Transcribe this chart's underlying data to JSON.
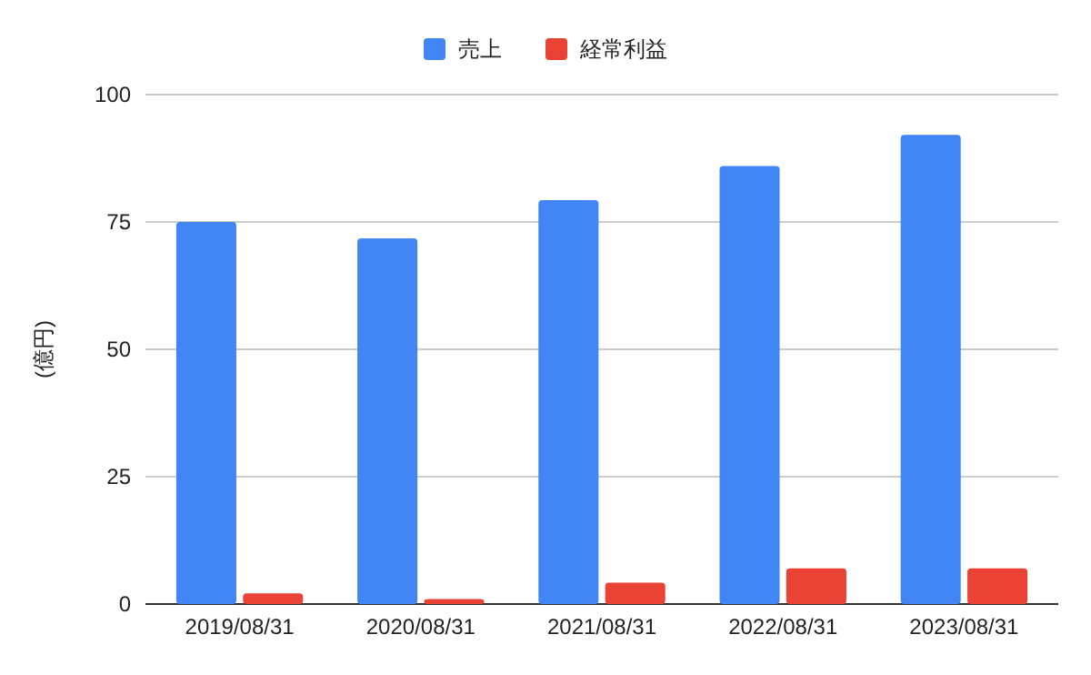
{
  "chart_data": {
    "type": "bar",
    "ylabel": "(億円)",
    "categories": [
      "2019/08/31",
      "2020/08/31",
      "2021/08/31",
      "2022/08/31",
      "2023/08/31"
    ],
    "series": [
      {
        "name": "売上",
        "color": "#4285f4",
        "values": [
          75.0,
          71.8,
          79.3,
          86.0,
          92.1
        ]
      },
      {
        "name": "経常利益",
        "color": "#ea4335",
        "values": [
          2.1,
          1.0,
          4.2,
          7.0,
          7.0
        ]
      }
    ],
    "ylim": [
      0,
      100
    ],
    "yticks": [
      0,
      25,
      50,
      75,
      100
    ],
    "grid": "y",
    "legend": "top"
  }
}
